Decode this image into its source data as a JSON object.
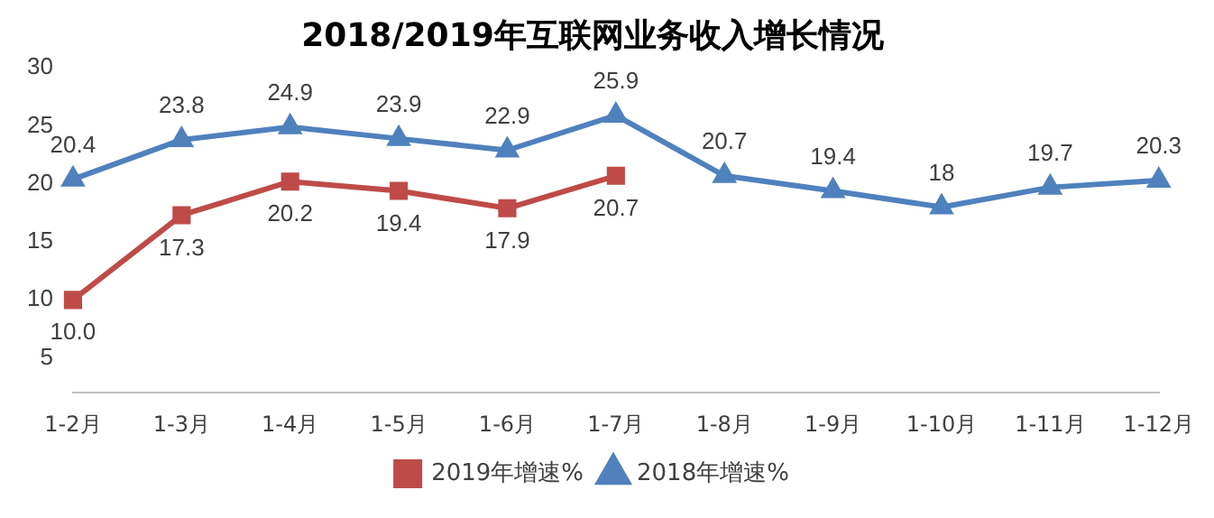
{
  "chart_data": {
    "type": "line",
    "title": "2018/2019年互联网业务收入增长情况",
    "categories": [
      "1-2月",
      "1-3月",
      "1-4月",
      "1-5月",
      "1-6月",
      "1-7月",
      "1-8月",
      "1-9月",
      "1-10月",
      "1-11月",
      "1-12月"
    ],
    "series": [
      {
        "name": "2019年增速%",
        "color": "#be4b48",
        "marker": "square",
        "values": [
          10.0,
          17.3,
          20.2,
          19.4,
          17.9,
          20.7,
          null,
          null,
          null,
          null,
          null
        ],
        "value_labels": [
          "10.0",
          "17.3",
          "20.2",
          "19.4",
          "17.9",
          "20.7",
          null,
          null,
          null,
          null,
          null
        ]
      },
      {
        "name": "2018年增速%",
        "color": "#4f81bd",
        "marker": "triangle",
        "values": [
          20.4,
          23.8,
          24.9,
          23.9,
          22.9,
          25.9,
          20.7,
          19.4,
          18,
          19.7,
          20.3
        ],
        "value_labels": [
          "20.4",
          "23.8",
          "24.9",
          "23.9",
          "22.9",
          "25.9",
          "20.7",
          "19.4",
          "18",
          "19.7",
          "20.3"
        ]
      }
    ],
    "ylim": [
      2,
      30
    ],
    "yticks": [
      5,
      10,
      15,
      20,
      25,
      30
    ],
    "grid": false,
    "legend": "bottom"
  }
}
